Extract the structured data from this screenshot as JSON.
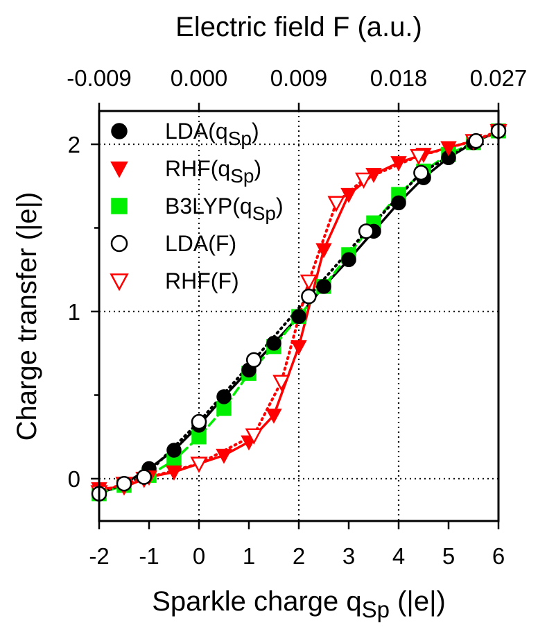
{
  "chart_data": {
    "type": "line",
    "xlabel_prefix": "Sparkle charge q",
    "xlabel_sub": "Sp",
    "xlabel_suffix": " (|e|)",
    "ylabel": "Charge transfer (|e|)",
    "top_xlabel": "Electric field F (a.u.)",
    "xlim": [
      -2,
      6
    ],
    "ylim": [
      -0.2,
      2.2
    ],
    "x_ticks": [
      -2,
      -1,
      0,
      1,
      2,
      3,
      4,
      5,
      6
    ],
    "x_tick_labels": [
      "-2",
      "-1",
      "0",
      "1",
      "2",
      "3",
      "4",
      "5",
      "6"
    ],
    "y_major_ticks": [
      0,
      1,
      2
    ],
    "y_tick_labels": [
      "0",
      "1",
      "2"
    ],
    "y_minor_ticks": [
      0.5,
      1.5
    ],
    "top_ticks_at_q": [
      -2,
      0,
      2,
      4,
      6
    ],
    "top_tick_labels": [
      "-0.009",
      "0.000",
      "0.009",
      "0.018",
      "0.027"
    ],
    "grid_x": [
      0,
      2,
      4
    ],
    "grid_y": [
      0,
      1,
      2
    ],
    "legend_position": "top-left",
    "series": [
      {
        "name": "LDA(q",
        "name_sub": "Sp",
        "name_suffix": ")",
        "color": "#000000",
        "marker": "circle",
        "filled": true,
        "line": "solid",
        "x": [
          -2,
          -1.5,
          -1,
          -0.5,
          0,
          0.5,
          1,
          1.5,
          2,
          2.5,
          3,
          3.5,
          4,
          4.5,
          5,
          5.5,
          6
        ],
        "y": [
          -0.09,
          -0.03,
          0.06,
          0.17,
          0.32,
          0.49,
          0.65,
          0.81,
          0.97,
          1.15,
          1.31,
          1.48,
          1.65,
          1.8,
          1.92,
          2.01,
          2.08
        ]
      },
      {
        "name": "RHF(q",
        "name_sub": "Sp",
        "name_suffix": ")",
        "color": "#ff0000",
        "marker": "triangle-down",
        "filled": true,
        "line": "solid",
        "x": [
          -2,
          -1.5,
          -1,
          -0.5,
          0,
          0.5,
          1,
          1.5,
          2,
          2.5,
          3,
          3.5,
          4,
          4.5,
          5,
          5.5,
          6
        ],
        "y": [
          -0.06,
          -0.05,
          0.01,
          0.04,
          0.09,
          0.14,
          0.22,
          0.38,
          0.79,
          1.37,
          1.7,
          1.82,
          1.89,
          1.94,
          1.98,
          2.02,
          2.07
        ]
      },
      {
        "name": "B3LYP(q",
        "name_sub": "Sp",
        "name_suffix": ")",
        "color": "#00ee00",
        "marker": "square",
        "filled": true,
        "line": "dashed",
        "x": [
          -2,
          -1.5,
          -1,
          -0.5,
          0,
          0.5,
          1,
          1.5,
          2,
          2.5,
          3,
          3.5,
          4,
          4.5,
          5,
          5.5,
          6
        ],
        "y": [
          -0.09,
          -0.04,
          0.02,
          0.11,
          0.25,
          0.42,
          0.63,
          0.79,
          0.97,
          1.15,
          1.34,
          1.53,
          1.7,
          1.84,
          1.94,
          2.01,
          2.08
        ]
      },
      {
        "name": "LDA(F)",
        "name_sub": "",
        "name_suffix": "",
        "color": "#000000",
        "marker": "circle",
        "filled": false,
        "line": "dotted",
        "x": [
          -2,
          -1.5,
          -1.1,
          0,
          1.1,
          2.2,
          3.35,
          4.45,
          5.55,
          6
        ],
        "y": [
          -0.09,
          -0.03,
          0.01,
          0.34,
          0.71,
          1.09,
          1.48,
          1.83,
          2.02,
          2.08
        ]
      },
      {
        "name": "RHF(F)",
        "name_sub": "",
        "name_suffix": "",
        "color": "#ff0000",
        "marker": "triangle-down",
        "filled": false,
        "line": "dotted",
        "x": [
          -2,
          -1.5,
          -1.1,
          0,
          1.1,
          1.65,
          2.2,
          2.75,
          3.3,
          4.4,
          5.5,
          6
        ],
        "y": [
          -0.08,
          -0.03,
          0.0,
          0.09,
          0.26,
          0.58,
          1.18,
          1.65,
          1.79,
          1.93,
          2.02,
          2.08
        ]
      }
    ]
  }
}
